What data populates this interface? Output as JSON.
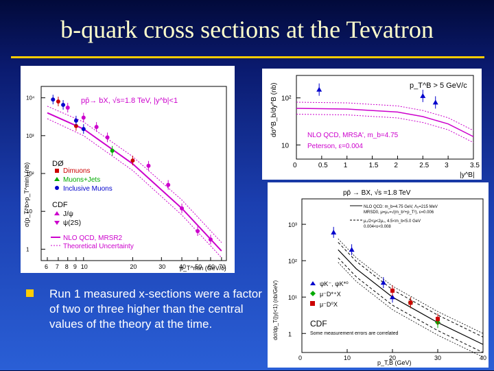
{
  "slide": {
    "title": "b-quark cross sections at the Tevatron",
    "bullet": "Run 1 measured x-sections were a factor of two or three higher than the central values of the theory at the time."
  },
  "colors": {
    "title": "#ffffcc",
    "rule": "#ffcc00",
    "magenta": "#cc00cc",
    "red": "#cc0000",
    "green": "#00aa00",
    "blue": "#0000cc"
  },
  "chart_data": [
    {
      "type": "scatter",
      "title": "pp̄→ bX, √s=1.8 TeV, |y^b|<1",
      "ylabel": "σ(p_T^b>p_T^min) (nb)",
      "xlabel": "p_T^min (GeV/c)",
      "xscale": "log",
      "yscale": "log",
      "xlim": [
        5.5,
        75
      ],
      "ylim": [
        0.5,
        20000
      ],
      "xticks": [
        "6",
        "7",
        "8",
        "9",
        "10",
        "20",
        "30",
        "40",
        "50",
        "60",
        "70"
      ],
      "yticks": [
        "1",
        "10",
        "10²",
        "10³",
        "10⁴"
      ],
      "legend": {
        "d0": "DØ",
        "d0_dimuons": "Dimuons",
        "d0_muonsjets": "Muons+Jets",
        "d0_inclusive": "Inclusive Muons",
        "cdf": "CDF",
        "cdf_jpsi": "J/ψ",
        "cdf_psi2s": "ψ(2S)",
        "nlo": "NLO QCD, MRSR2",
        "unc": "Theoretical Uncertainty"
      },
      "series": [
        {
          "name": "Dimuons",
          "color": "#cc0000",
          "x": [
            7,
            9,
            20
          ],
          "y": [
            8000,
            1800,
            220
          ]
        },
        {
          "name": "Muons+Jets",
          "color": "#00aa00",
          "x": [
            15
          ],
          "y": [
            400
          ]
        },
        {
          "name": "Inclusive Muons",
          "color": "#0000cc",
          "x": [
            6.5,
            7.5,
            9,
            10
          ],
          "y": [
            9000,
            6500,
            2500,
            1500
          ]
        },
        {
          "name": "J/ψ",
          "color": "#cc00cc",
          "x": [
            8,
            10,
            12,
            14,
            25,
            40,
            50
          ],
          "y": [
            5500,
            3000,
            1700,
            900,
            160,
            12,
            3
          ]
        },
        {
          "name": "ψ(2S)",
          "color": "#cc00cc",
          "x": [
            33,
            60
          ],
          "y": [
            50,
            1.8
          ]
        }
      ],
      "curves": [
        {
          "name": "NLO QCD, MRSR2",
          "x": [
            6,
            10,
            20,
            40,
            70
          ],
          "y": [
            4000,
            1500,
            180,
            12,
            0.9
          ]
        },
        {
          "name": "Theoretical Uncertainty",
          "x": [
            6,
            10,
            20,
            40,
            70
          ],
          "y": [
            6000,
            2300,
            280,
            20,
            1.5
          ]
        },
        {
          "name": "Theoretical Uncertainty",
          "x": [
            6,
            10,
            20,
            40,
            70
          ],
          "y": [
            2800,
            1000,
            120,
            8,
            0.6
          ]
        }
      ]
    },
    {
      "type": "scatter",
      "ylabel": "dσ^B_b/dy^B (nb)",
      "xlabel": "|y^B|",
      "xlim": [
        0,
        3.5
      ],
      "ylim": [
        5,
        300
      ],
      "yscale": "log",
      "xticks": [
        "0",
        "0.5",
        "1",
        "1.5",
        "2",
        "2.5",
        "3",
        "3.5"
      ],
      "yticks": [
        "10",
        "10²"
      ],
      "annotation": "p_T^B > 5 GeV/c",
      "legend": {
        "nlo": "NLO QCD, MRSA', m_b=4.75",
        "peterson": "Peterson, ε=0.004"
      },
      "series": [
        {
          "name": "data",
          "x": [
            0.45,
            2.5,
            2.75
          ],
          "y": [
            150,
            110,
            80
          ]
        }
      ],
      "curves": [
        {
          "name": "NLO QCD, MRSA', m_b=4.75",
          "x": [
            0,
            1,
            2,
            2.5,
            3,
            3.5
          ],
          "y": [
            60,
            58,
            50,
            40,
            28,
            15
          ]
        }
      ]
    },
    {
      "type": "scatter",
      "title": "pp̄ → BX, √s =1.8 TeV",
      "ylabel": "dσ/dp_T(|y|<1) (nb/GeV)",
      "xlabel": "p_T,B (GeV)",
      "xlim": [
        0,
        40
      ],
      "ylim": [
        0.3,
        5000
      ],
      "yscale": "log",
      "xticks": [
        "0",
        "10",
        "20",
        "30",
        "40"
      ],
      "yticks": [
        "1",
        "10¹",
        "10²",
        "10³"
      ],
      "annotation_main": "CDF",
      "annotation_note": "Some measurement errors are correlated",
      "legend": {
        "s1": "ψK⁻, ψK*⁰",
        "s2": "μ⁻D*⁺X",
        "s3": "μ⁻D⁰X",
        "t1": "NLO QCD: m_b=4.75 GeV, Λ₅=215 MeV",
        "t1b": "MRSD0, μ=μ₀=√(m_b²+p_T²), ε=0.006",
        "t2": "μ₀/2<μ<2μ₀, 4.5<m_b<5.0 GeV",
        "t2b": "0.004<ε<0.008"
      },
      "series": [
        {
          "name": "ψK⁻, ψK*⁰",
          "color": "#0000cc",
          "x": [
            7,
            11,
            18,
            20
          ],
          "y": [
            600,
            200,
            25,
            10
          ]
        },
        {
          "name": "μ⁻D*⁺X",
          "color": "#00aa00",
          "x": [
            24,
            30
          ],
          "y": [
            7,
            2
          ]
        },
        {
          "name": "μ⁻D⁰X",
          "color": "#cc0000",
          "x": [
            20,
            24,
            30
          ],
          "y": [
            15,
            7,
            2.5
          ]
        }
      ]
    }
  ]
}
